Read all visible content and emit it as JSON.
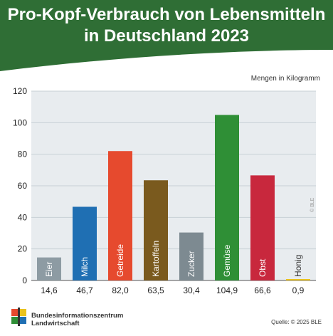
{
  "chart_data": {
    "type": "bar",
    "title_line1": "Pro-Kopf-Verbrauch von Lebensmitteln",
    "title_line2": "in Deutschland 2023",
    "unit_label": "Mengen in Kilogramm",
    "categories": [
      "Eier",
      "Milch",
      "Getreide",
      "Kartoffeln",
      "Zucker",
      "Gemüse",
      "Obst",
      "Honig"
    ],
    "values": [
      14.6,
      46.7,
      82.0,
      63.5,
      30.4,
      104.9,
      66.6,
      0.9
    ],
    "value_labels": [
      "14,6",
      "46,7",
      "82,0",
      "63,5",
      "30,4",
      "104,9",
      "66,6",
      "0,9"
    ],
    "colors": [
      "#8d9ba3",
      "#1f6fb3",
      "#e64a2e",
      "#7a5a1e",
      "#7d8a91",
      "#2f8f36",
      "#c8283d",
      "#e9c21e"
    ],
    "ylim": [
      0,
      120
    ],
    "yticks": [
      0,
      20,
      40,
      60,
      80,
      100,
      120
    ],
    "grid": true,
    "legend": "none"
  },
  "theme": {
    "header_color": "#2f6e35",
    "plot_background": "#e8ecef"
  },
  "footer": {
    "org_line1": "Bundesinformationszentrum",
    "org_line2": "Landwirtschaft",
    "source": "Quelle: © 2025 BLE",
    "copyright": "© BLE"
  }
}
